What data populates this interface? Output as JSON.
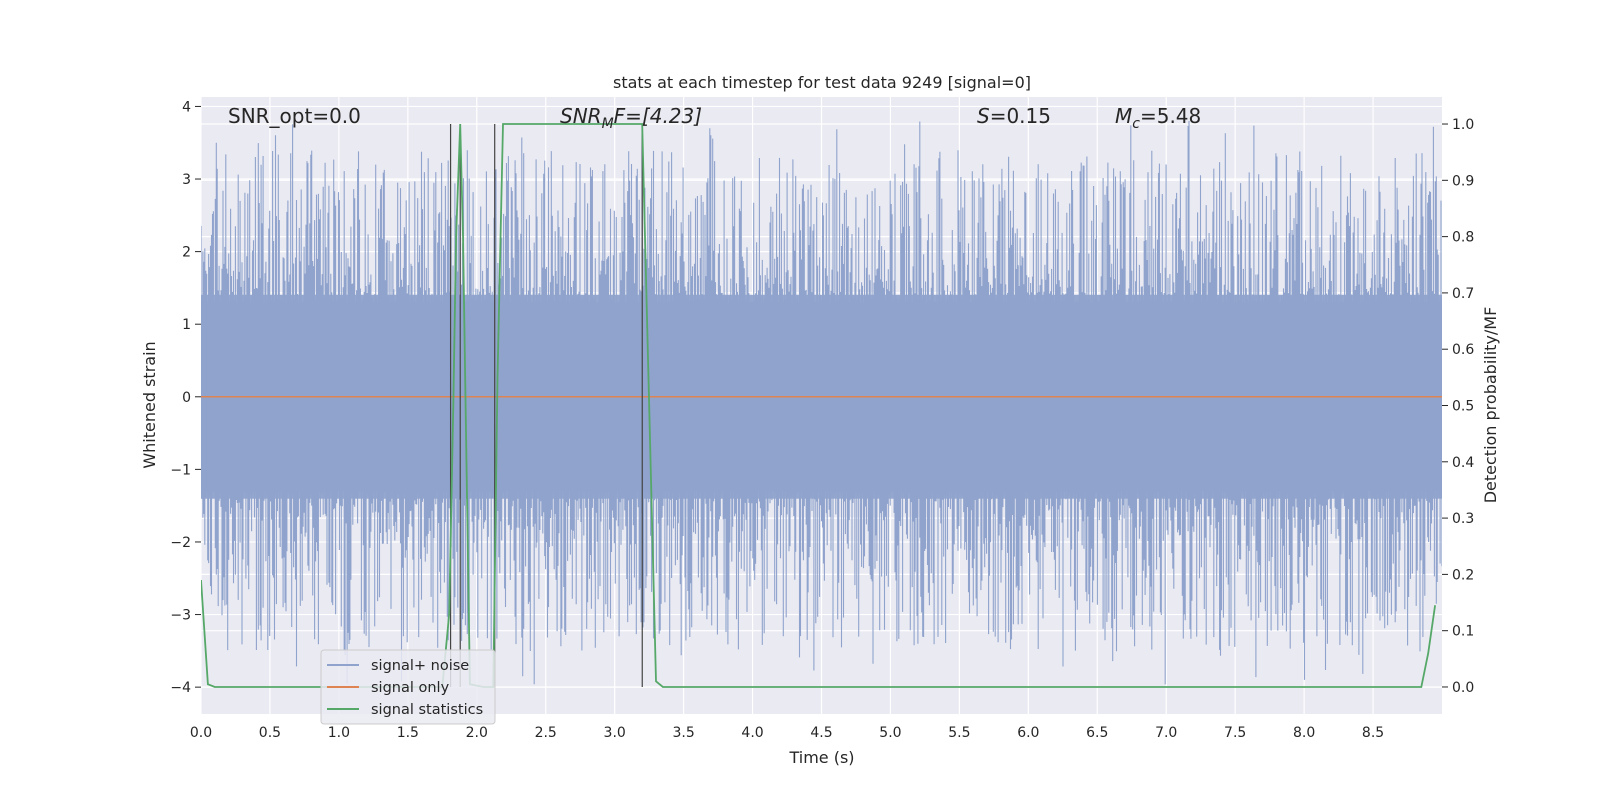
{
  "chart_data": {
    "type": "line",
    "title": "stats at each timestep for test data 9249 [signal=0]",
    "xlabel": "Time (s)",
    "ylabel": "Whitened strain",
    "y2label": "Detection probability/MF",
    "xlim": [
      0.0,
      9.0
    ],
    "ylim": [
      -4.37,
      4.13
    ],
    "y2lim": [
      -0.048,
      1.048
    ],
    "xticks": [
      "0.0",
      "0.5",
      "1.0",
      "1.5",
      "2.0",
      "2.5",
      "3.0",
      "3.5",
      "4.0",
      "4.5",
      "5.0",
      "5.5",
      "6.0",
      "6.5",
      "7.0",
      "7.5",
      "8.0",
      "8.5"
    ],
    "yticks": [
      "4",
      "3",
      "2",
      "1",
      "0",
      "−1",
      "−2",
      "−3",
      "−4"
    ],
    "y2ticks": [
      "1.0",
      "0.9",
      "0.8",
      "0.7",
      "0.6",
      "0.5",
      "0.4",
      "0.3",
      "0.2",
      "0.1",
      "0.0"
    ],
    "grid": true,
    "legend_position": "lower-left",
    "annotations": {
      "snr_opt": "SNR_opt=0.0",
      "snr_mf_sym": "SNR",
      "snr_mf_sub": "M",
      "snr_mf_rest": "F=[4.23]",
      "s_sym": "S",
      "s_rest": "=0.15",
      "mc_sym": "M",
      "mc_sub": "c",
      "mc_rest": "=5.48"
    },
    "series": [
      {
        "name": "signal+ noise",
        "color": "#8fa3cc",
        "description_values": "whitened strain noise, approx. uniform band between -1.8 and 1.8 with spikes up to 3.8 and down to -4.0",
        "envelope": {
          "x": [
            0.0,
            9.0
          ],
          "typical_min": -1.8,
          "typical_max": 1.8,
          "peak_max": 3.8,
          "peak_min": -4.0
        }
      },
      {
        "name": "signal only",
        "color": "#dd8452",
        "x": [
          0.0,
          9.0
        ],
        "y": [
          0.0,
          0.0
        ]
      },
      {
        "name": "signal statistics",
        "color": "#55a868",
        "axis": "right",
        "x": [
          0.0,
          0.05,
          0.1,
          1.75,
          1.8,
          1.83,
          1.85,
          1.88,
          1.9,
          1.95,
          2.05,
          2.12,
          2.15,
          2.19,
          3.2,
          3.3,
          3.35,
          8.85,
          8.9,
          8.95
        ],
        "y": [
          0.19,
          0.005,
          0.0,
          0.0,
          0.13,
          0.5,
          0.8,
          1.0,
          0.8,
          0.005,
          0.0,
          0.0,
          0.55,
          1.0,
          1.0,
          0.01,
          0.0,
          0.0,
          0.06,
          0.145
        ]
      }
    ],
    "vertical_lines_x": [
      1.81,
      1.88,
      2.13,
      3.2
    ]
  }
}
